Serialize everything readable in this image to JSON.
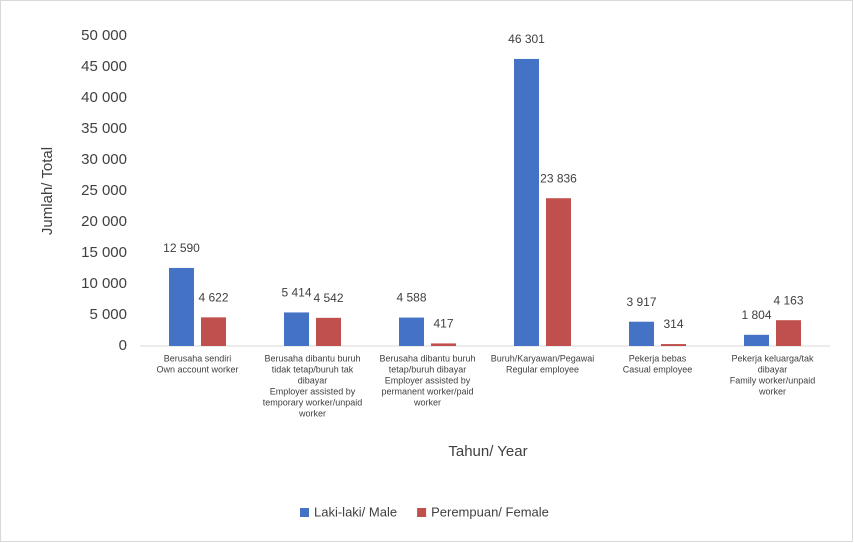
{
  "chart_data": {
    "type": "bar",
    "xlabel": "Tahun/ Year",
    "ylabel": "Jumlah/ Total",
    "categories": [
      [
        "Berusaha sendiri",
        "Own account worker"
      ],
      [
        "Berusaha dibantu buruh",
        "tidak tetap/buruh tak",
        "dibayar",
        "Employer assisted by",
        "temporary worker/unpaid",
        "worker"
      ],
      [
        "Berusaha dibantu buruh",
        "tetap/buruh dibayar",
        "Employer assisted by",
        "permanent worker/paid",
        "worker"
      ],
      [
        "Buruh/Karyawan/Pegawai",
        "Regular employee"
      ],
      [
        "Pekerja bebas",
        "Casual employee"
      ],
      [
        "Pekerja keluarga/tak",
        "dibayar",
        "Family worker/unpaid",
        "worker"
      ]
    ],
    "series": [
      {
        "name": "Laki-laki/ Male",
        "color": "#4472c4",
        "values": [
          12590,
          5414,
          4588,
          46301,
          3917,
          1804
        ],
        "value_labels": [
          "12 590",
          "5 414",
          "4 588",
          "46 301",
          "3 917",
          "1 804"
        ]
      },
      {
        "name": "Perempuan/ Female",
        "color": "#c0504d",
        "values": [
          4622,
          4542,
          417,
          23836,
          314,
          4163
        ],
        "value_labels": [
          "4 622",
          "4 542",
          "417",
          "23 836",
          "314",
          "4 163"
        ]
      }
    ],
    "ylim": [
      0,
      50000
    ],
    "yticks": [
      0,
      {
        "value": 5000,
        "label": "5 000"
      },
      {
        "value": 10000,
        "label": "10 000"
      },
      {
        "value": 15000,
        "label": "15 000"
      },
      {
        "value": 20000,
        "label": "20 000"
      },
      {
        "value": 25000,
        "label": "25 000"
      },
      {
        "value": 30000,
        "label": "30 000"
      },
      {
        "value": 35000,
        "label": "35 000"
      },
      {
        "value": 40000,
        "label": "40 000"
      },
      {
        "value": 45000,
        "label": "45 000"
      },
      {
        "value": 50000,
        "label": "50 000"
      }
    ],
    "legend": "bottom"
  }
}
